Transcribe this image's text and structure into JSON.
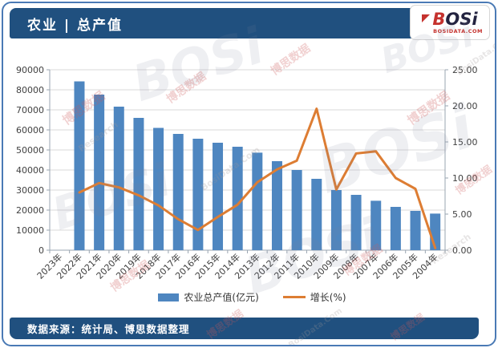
{
  "header": {
    "title": "农业 | 总产值"
  },
  "logo": {
    "brand_b": "B",
    "brand_rest": "OSi",
    "domain": "BOSIDATA.COM"
  },
  "footer": {
    "source": "数据来源：统计局、博思数据整理"
  },
  "watermarks": {
    "cn": "博思数据",
    "brand": "BOSi",
    "research": "Research",
    "site": "BosiData.Com"
  },
  "chart_data": {
    "type": "bar+line combo",
    "title": "农业 | 总产值",
    "categories": [
      "2023年",
      "2022年",
      "2021年",
      "2020年",
      "2019年",
      "2018年",
      "2017年",
      "2016年",
      "2015年",
      "2014年",
      "2013年",
      "2012年",
      "2011年",
      "2010年",
      "2009年",
      "2008年",
      "2007年",
      "2006年",
      "2005年",
      "2004年"
    ],
    "series": [
      {
        "name": "农业总产值(亿元)",
        "type": "bar",
        "color": "#4e86c0",
        "axis": "left",
        "values": [
          null,
          84200,
          77600,
          71600,
          66000,
          61000,
          58000,
          55600,
          53600,
          51600,
          48650,
          44400,
          40000,
          35600,
          30000,
          27600,
          24650,
          21600,
          19600,
          18250
        ]
      },
      {
        "name": "增长(%)",
        "type": "line",
        "color": "#dd7d33",
        "axis": "right",
        "values": [
          null,
          8.0,
          9.3,
          8.7,
          7.6,
          6.2,
          4.3,
          2.8,
          4.6,
          6.3,
          9.4,
          11.2,
          12.4,
          19.6,
          8.4,
          13.4,
          13.7,
          10.0,
          8.5,
          0.3
        ]
      }
    ],
    "left_axis": {
      "min": 0,
      "max": 90000,
      "step": 10000,
      "labels": [
        "0",
        "10000",
        "20000",
        "30000",
        "40000",
        "50000",
        "60000",
        "70000",
        "80000",
        "90000"
      ]
    },
    "right_axis": {
      "min": 0,
      "max": 25,
      "step": 5,
      "labels": [
        "0.00",
        "5.00",
        "10.00",
        "15.00",
        "20.00",
        "25.00"
      ]
    },
    "grid": true,
    "legend_position": "bottom",
    "note": "2023 slot labeled on axis but has no bar/line point"
  }
}
